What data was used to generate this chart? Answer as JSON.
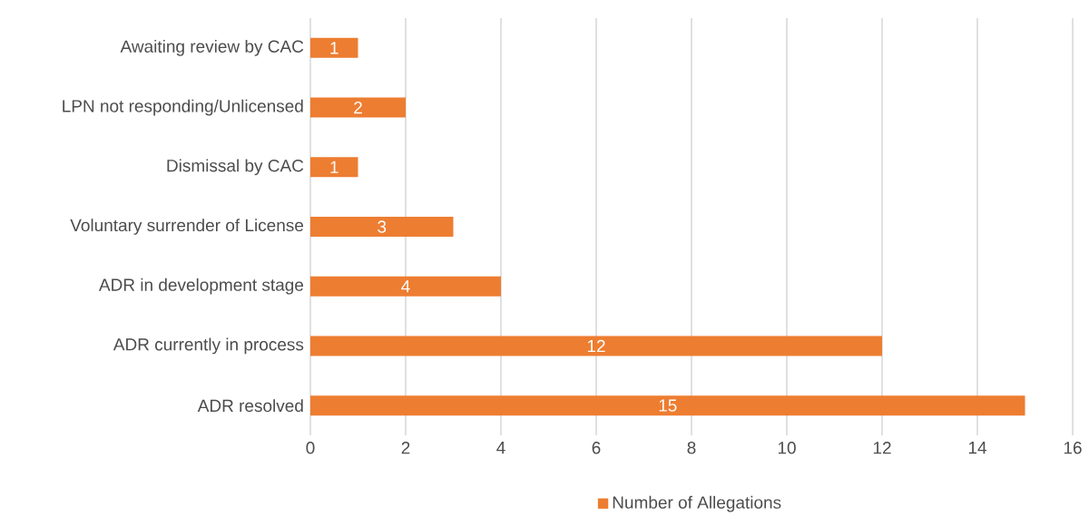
{
  "chart_data": {
    "type": "bar",
    "orientation": "horizontal",
    "categories": [
      "Awaiting review by CAC",
      "LPN not responding/Unlicensed",
      "Dismissal by CAC",
      "Voluntary surrender of License",
      "ADR in development stage",
      "ADR currently in process",
      "ADR resolved"
    ],
    "series": [
      {
        "name": "Number of Allegations",
        "color": "#ed7d31",
        "values": [
          1,
          2,
          1,
          3,
          4,
          12,
          15
        ]
      }
    ],
    "xlim": [
      0,
      16
    ],
    "xticks": [
      0,
      2,
      4,
      6,
      8,
      10,
      12,
      14,
      16
    ],
    "grid": "x",
    "legend": "bottom",
    "data_labels": true
  }
}
